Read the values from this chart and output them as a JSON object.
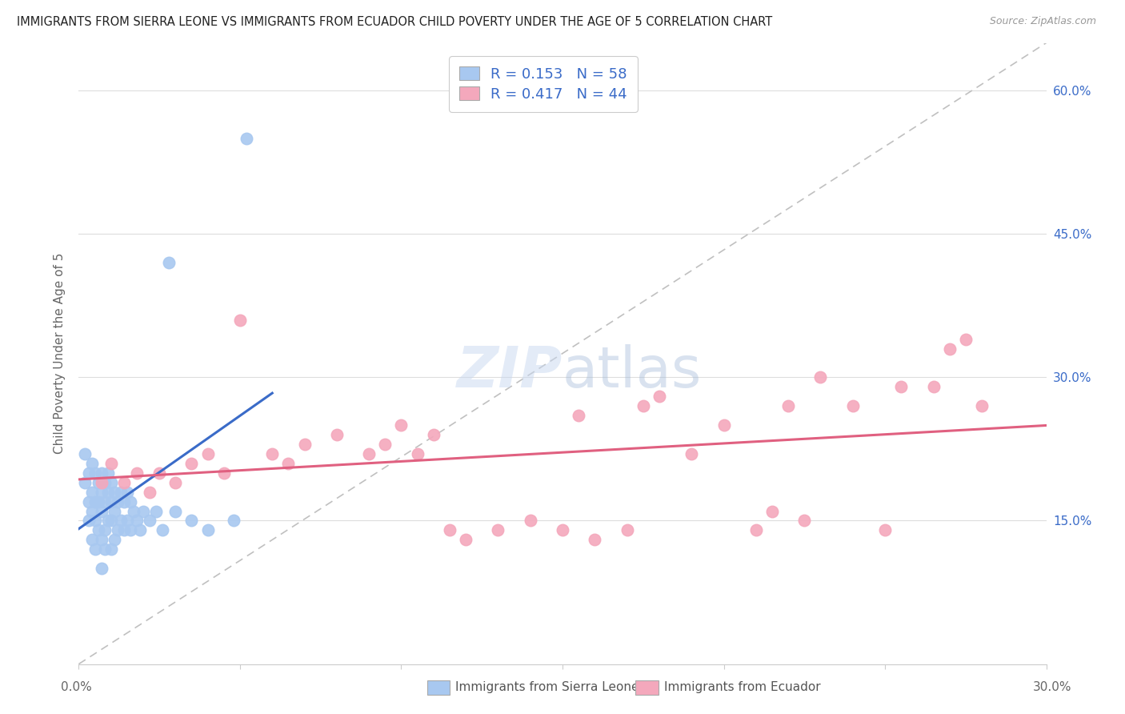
{
  "title": "IMMIGRANTS FROM SIERRA LEONE VS IMMIGRANTS FROM ECUADOR CHILD POVERTY UNDER THE AGE OF 5 CORRELATION CHART",
  "source": "Source: ZipAtlas.com",
  "ylabel": "Child Poverty Under the Age of 5",
  "legend_label1": "Immigrants from Sierra Leone",
  "legend_label2": "Immigrants from Ecuador",
  "R1": 0.153,
  "N1": 58,
  "R2": 0.417,
  "N2": 44,
  "xlim": [
    0.0,
    0.3
  ],
  "ylim": [
    0.0,
    0.65
  ],
  "color1": "#A8C8F0",
  "color2": "#F4A8BC",
  "trendline1_color": "#3A6BC8",
  "trendline2_color": "#E06080",
  "refline_color": "#C0C0C0",
  "right_tick_color": "#3A6BC8",
  "watermark_color": "#C8D8F0",
  "background_color": "#FFFFFF",
  "sl_x": [
    0.002,
    0.002,
    0.003,
    0.003,
    0.003,
    0.004,
    0.004,
    0.004,
    0.004,
    0.005,
    0.005,
    0.005,
    0.005,
    0.006,
    0.006,
    0.006,
    0.007,
    0.007,
    0.007,
    0.007,
    0.007,
    0.008,
    0.008,
    0.008,
    0.008,
    0.009,
    0.009,
    0.009,
    0.01,
    0.01,
    0.01,
    0.01,
    0.011,
    0.011,
    0.011,
    0.012,
    0.012,
    0.013,
    0.013,
    0.014,
    0.014,
    0.015,
    0.015,
    0.016,
    0.016,
    0.017,
    0.018,
    0.019,
    0.02,
    0.022,
    0.024,
    0.026,
    0.028,
    0.03,
    0.035,
    0.04,
    0.048,
    0.052
  ],
  "sl_y": [
    0.19,
    0.22,
    0.2,
    0.17,
    0.15,
    0.21,
    0.18,
    0.16,
    0.13,
    0.2,
    0.17,
    0.15,
    0.12,
    0.19,
    0.17,
    0.14,
    0.2,
    0.18,
    0.16,
    0.13,
    0.1,
    0.19,
    0.17,
    0.14,
    0.12,
    0.2,
    0.18,
    0.15,
    0.19,
    0.17,
    0.15,
    0.12,
    0.18,
    0.16,
    0.13,
    0.17,
    0.14,
    0.18,
    0.15,
    0.17,
    0.14,
    0.18,
    0.15,
    0.17,
    0.14,
    0.16,
    0.15,
    0.14,
    0.16,
    0.15,
    0.16,
    0.14,
    0.42,
    0.16,
    0.15,
    0.14,
    0.15,
    0.55
  ],
  "ec_x": [
    0.007,
    0.01,
    0.014,
    0.018,
    0.022,
    0.025,
    0.03,
    0.035,
    0.04,
    0.045,
    0.05,
    0.06,
    0.065,
    0.07,
    0.08,
    0.09,
    0.095,
    0.1,
    0.105,
    0.11,
    0.115,
    0.12,
    0.13,
    0.14,
    0.15,
    0.155,
    0.16,
    0.17,
    0.175,
    0.18,
    0.19,
    0.2,
    0.21,
    0.215,
    0.22,
    0.225,
    0.23,
    0.24,
    0.25,
    0.255,
    0.265,
    0.27,
    0.275,
    0.28
  ],
  "ec_y": [
    0.19,
    0.21,
    0.19,
    0.2,
    0.18,
    0.2,
    0.19,
    0.21,
    0.22,
    0.2,
    0.36,
    0.22,
    0.21,
    0.23,
    0.24,
    0.22,
    0.23,
    0.25,
    0.22,
    0.24,
    0.14,
    0.13,
    0.14,
    0.15,
    0.14,
    0.26,
    0.13,
    0.14,
    0.27,
    0.28,
    0.22,
    0.25,
    0.14,
    0.16,
    0.27,
    0.15,
    0.3,
    0.27,
    0.14,
    0.29,
    0.29,
    0.33,
    0.34,
    0.27
  ]
}
